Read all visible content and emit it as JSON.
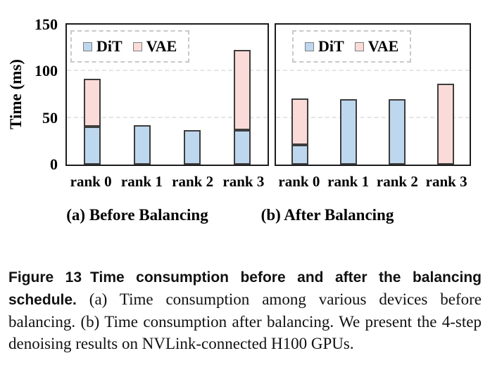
{
  "y_axis": {
    "label": "Time (ms)"
  },
  "caption": {
    "label": "Figure 13",
    "bold": "Time consumption before and after the balancing schedule.",
    "body": "(a) Time consumption among various devices before balancing. (b) Time consumption after balancing. We present the 4-step denoising results on NVLink-connected H100 GPUs."
  },
  "colors": {
    "dit_fill": "#BDD7EE",
    "vae_fill": "#FADBD8",
    "bar_border": "#3D3D3D",
    "gridline": "#E6E6E6"
  },
  "chart_data": [
    {
      "type": "bar",
      "stacked": true,
      "name": "before-balancing",
      "title": "(a) Before Balancing",
      "categories": [
        "rank 0",
        "rank 1",
        "rank 2",
        "rank 3"
      ],
      "series": [
        {
          "name": "DiT",
          "color": "#BDD7EE",
          "values": [
            41,
            42,
            37,
            37
          ]
        },
        {
          "name": "VAE",
          "color": "#FADBD8",
          "values": [
            51,
            0,
            0,
            86
          ]
        }
      ],
      "ylabel": "Time (ms)",
      "ylim": [
        0,
        150
      ],
      "yticks": [
        0,
        50,
        100,
        150
      ],
      "grid": "dashed-horizontal",
      "legend_position": "top-left"
    },
    {
      "type": "bar",
      "stacked": true,
      "name": "after-balancing",
      "title": "(b) After Balancing",
      "categories": [
        "rank 0",
        "rank 1",
        "rank 2",
        "rank 3"
      ],
      "series": [
        {
          "name": "DiT",
          "color": "#BDD7EE",
          "values": [
            21,
            70,
            70,
            0
          ]
        },
        {
          "name": "VAE",
          "color": "#FADBD8",
          "values": [
            50,
            0,
            0,
            87
          ]
        }
      ],
      "ylabel": "Time (ms)",
      "ylim": [
        0,
        150
      ],
      "yticks": [
        0,
        50,
        100,
        150
      ],
      "grid": "dashed-horizontal",
      "legend_position": "top-left"
    }
  ]
}
